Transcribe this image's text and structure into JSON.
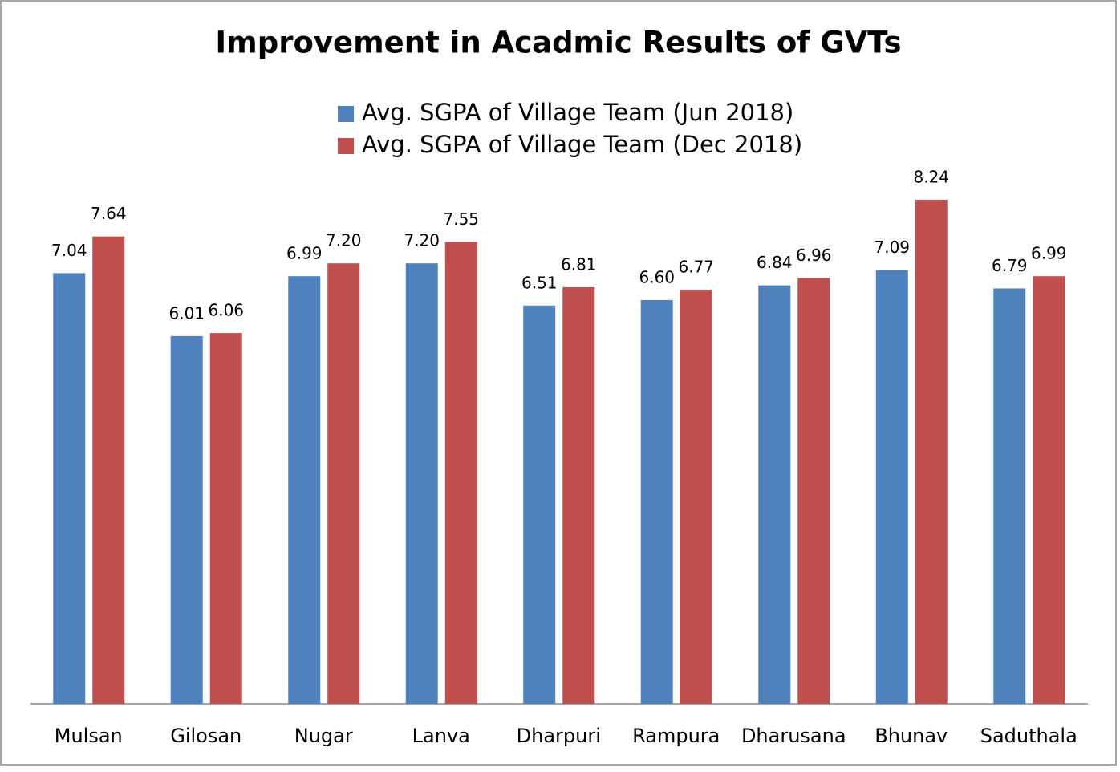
{
  "chart_data": {
    "type": "bar",
    "title": "Improvement in Acadmic Results of GVTs",
    "categories": [
      "Mulsan",
      "Gilosan",
      "Nugar",
      "Lanva",
      "Dharpuri",
      "Rampura",
      "Dharusana",
      "Bhunav",
      "Saduthala"
    ],
    "series": [
      {
        "name": "Avg. SGPA of Village Team (Jun 2018)",
        "color": "#4f81bd",
        "values": [
          7.04,
          6.01,
          6.99,
          7.2,
          6.51,
          6.6,
          6.84,
          7.09,
          6.79
        ],
        "value_labels": [
          "7.04",
          "6.01",
          "6.99",
          "7.20",
          "6.51",
          "6.60",
          "6.84",
          "7.09",
          "6.79"
        ]
      },
      {
        "name": "Avg. SGPA of Village Team (Dec 2018)",
        "color": "#c0504d",
        "values": [
          7.64,
          6.06,
          7.2,
          7.55,
          6.81,
          6.77,
          6.96,
          8.24,
          6.99
        ],
        "value_labels": [
          "7.64",
          "6.06",
          "7.20",
          "7.55",
          "6.81",
          "6.77",
          "6.96",
          "8.24",
          "6.99"
        ]
      }
    ],
    "ylim": [
      0,
      9
    ],
    "legend": "top"
  }
}
